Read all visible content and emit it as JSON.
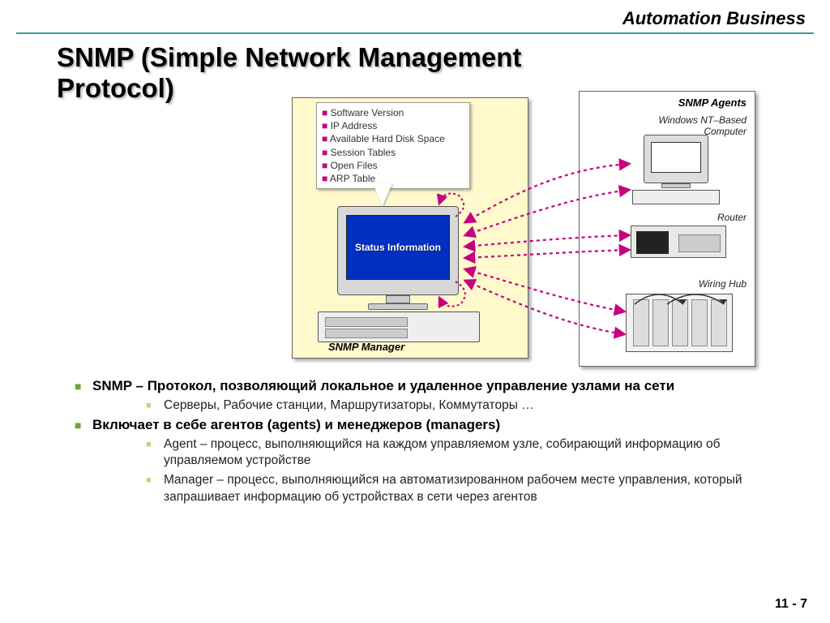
{
  "header": "Automation Business",
  "title": "SNMP (Simple Network Management Protocol)",
  "page_number": "11 - 7",
  "colors": {
    "rule": "#3c9999",
    "bullet_primary": "#6fa53a",
    "bullet_secondary": "#b7d77a",
    "info_bullet": "#c6007e",
    "screen_bg": "#0030c0",
    "panel_bg": "#fff9cc",
    "arrow": "#c6007e",
    "background": "#ffffff"
  },
  "diagram": {
    "manager": {
      "label": "SNMP Manager",
      "screen_text": "Status Information",
      "info_items": [
        "Software Version",
        "IP Address",
        "Available Hard Disk Space",
        "Session Tables",
        "Open Files",
        "ARP Table"
      ]
    },
    "agents": {
      "title": "SNMP Agents",
      "devices": [
        {
          "label": "Windows NT–Based Computer"
        },
        {
          "label": "Router"
        },
        {
          "label": "Wiring Hub"
        }
      ]
    },
    "connections": {
      "style": "bidirectional-dashed",
      "color": "#c6007e",
      "pairs_per_device": 2
    }
  },
  "bullets": [
    {
      "text": "SNMP – Протокол, позволяющий локальное и удаленное управление узлами на сети",
      "children": [
        "Серверы, Рабочие станции, Маршрутизаторы, Коммутаторы …"
      ]
    },
    {
      "text": "Включает в себе агентов (agents) и менеджеров (managers)",
      "children": [
        "Agent – процесс, выполняющийся на каждом управляемом узле, собирающий информацию об управляемом устройстве",
        "Manager – процесс, выполняющийся на автоматизированном рабочем месте управления, который запрашивает информацию об устройствах в сети через агентов"
      ]
    }
  ]
}
